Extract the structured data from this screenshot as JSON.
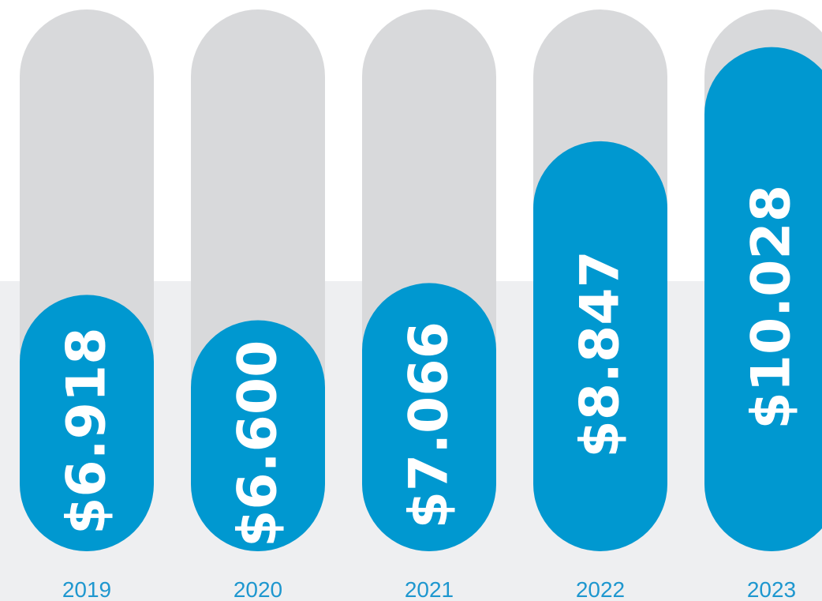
{
  "chart_data": {
    "type": "bar",
    "categories": [
      "2019",
      "2020",
      "2021",
      "2022",
      "2023"
    ],
    "values": [
      6.918,
      6.6,
      7.066,
      8.847,
      10.028
    ],
    "value_labels": [
      "$6.918",
      "$6.600",
      "$7.066",
      "$8.847",
      "$10.028"
    ],
    "title": "",
    "xlabel": "",
    "ylabel": "",
    "ylim": [
      3.7,
      10.5
    ],
    "grid": false,
    "colors": {
      "bar": "#0098d0",
      "track": "#d8d9db",
      "value_label": "#ffffff",
      "category_label": "#1e97cf",
      "band": "#eeeff1"
    }
  }
}
